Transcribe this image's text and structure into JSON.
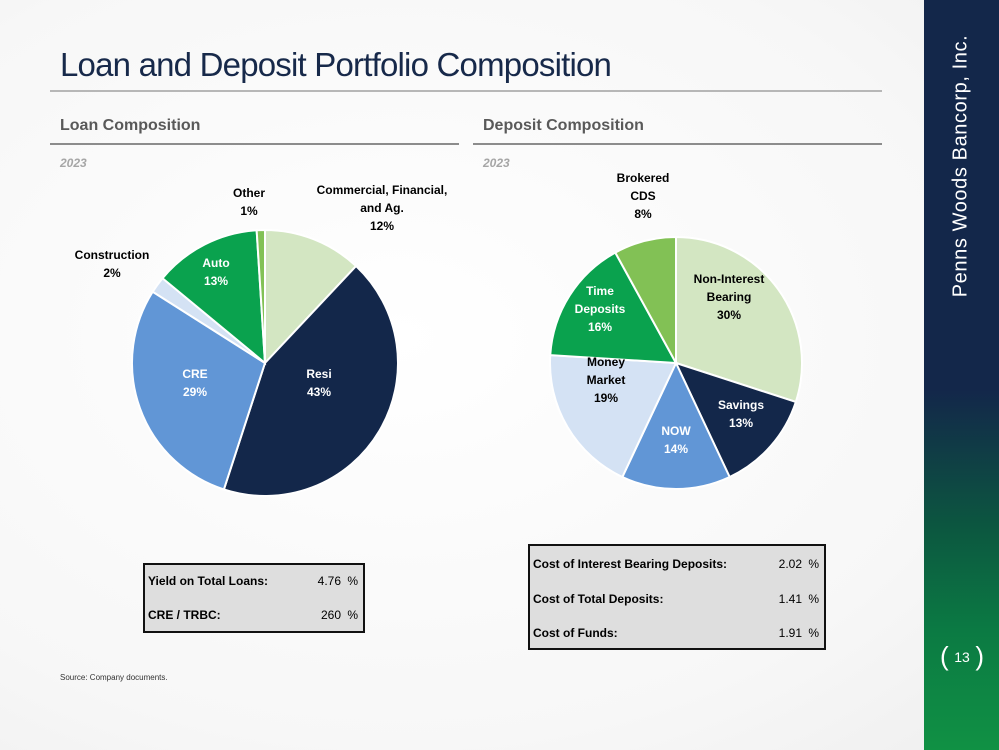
{
  "page": {
    "title": "Loan and Deposit Portfolio Composition",
    "source": "Source: Company documents.",
    "company": "Penns Woods Bancorp, Inc.",
    "page_number": "13"
  },
  "loan": {
    "heading": "Loan Composition",
    "year": "2023",
    "metrics": [
      {
        "label": "Yield on Total Loans:",
        "value": "4.76",
        "unit": "%"
      },
      {
        "label": "CRE / TRBC:",
        "value": "260",
        "unit": "%"
      }
    ]
  },
  "deposit": {
    "heading": "Deposit Composition",
    "year": "2023",
    "metrics": [
      {
        "label": "Cost of Interest Bearing Deposits:",
        "value": "2.02",
        "unit": "%"
      },
      {
        "label": "Cost of Total Deposits:",
        "value": "1.41",
        "unit": "%"
      },
      {
        "label": "Cost of Funds:",
        "value": "1.91",
        "unit": "%"
      }
    ]
  },
  "chart_data": [
    {
      "type": "pie",
      "title": "Loan Composition 2023",
      "slices": [
        {
          "label": [
            "Commercial, Financial,",
            "and Ag."
          ],
          "value": 12,
          "pct_text": "12%",
          "color": "#d3e6c2",
          "text_color": "#000000"
        },
        {
          "label": [
            "Resi"
          ],
          "value": 43,
          "pct_text": "43%",
          "color": "#13274a",
          "text_color": "#ffffff"
        },
        {
          "label": [
            "CRE"
          ],
          "value": 29,
          "pct_text": "29%",
          "color": "#6196d6",
          "text_color": "#ffffff"
        },
        {
          "label": [
            "Construction"
          ],
          "value": 2,
          "pct_text": "2%",
          "color": "#d4e2f4",
          "text_color": "#000000"
        },
        {
          "label": [
            "Auto"
          ],
          "value": 13,
          "pct_text": "13%",
          "color": "#0aa24e",
          "text_color": "#ffffff"
        },
        {
          "label": [
            "Other"
          ],
          "value": 1,
          "pct_text": "1%",
          "color": "#82c155",
          "text_color": "#000000"
        }
      ]
    },
    {
      "type": "pie",
      "title": "Deposit Composition 2023",
      "slices": [
        {
          "label": [
            "Non-Interest",
            "Bearing"
          ],
          "value": 30,
          "pct_text": "30%",
          "color": "#d3e6c2",
          "text_color": "#000000"
        },
        {
          "label": [
            "Savings"
          ],
          "value": 13,
          "pct_text": "13%",
          "color": "#13274a",
          "text_color": "#ffffff"
        },
        {
          "label": [
            "NOW"
          ],
          "value": 14,
          "pct_text": "14%",
          "color": "#6196d6",
          "text_color": "#ffffff"
        },
        {
          "label": [
            "Money",
            "Market"
          ],
          "value": 19,
          "pct_text": "19%",
          "color": "#d4e2f4",
          "text_color": "#000000"
        },
        {
          "label": [
            "Time",
            "Deposits"
          ],
          "value": 16,
          "pct_text": "16%",
          "color": "#0aa24e",
          "text_color": "#ffffff"
        },
        {
          "label": [
            "Brokered",
            "CDS"
          ],
          "value": 8,
          "pct_text": "8%",
          "color": "#82c155",
          "text_color": "#000000"
        }
      ]
    }
  ]
}
